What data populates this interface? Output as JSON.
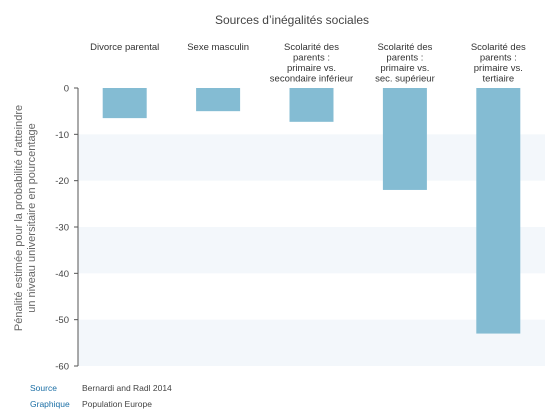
{
  "colors": {
    "bar": "#84bcd3",
    "band": "#f3f7fb",
    "axis": "#555555",
    "footer_key": "#1a6ea5"
  },
  "chart_data": {
    "type": "bar",
    "title": "Sources d’inégalités sociales",
    "ylabel": "Pénalité estimée pour la probabilité d’atteindre un niveau universitaire en pourcentage",
    "ylabel_lines": [
      "Pénalité estimée pour la probabilité d’atteindre",
      "un niveau universitaire en pourcentage"
    ],
    "categories": [
      "Divorce parental",
      "Sexe masculin",
      "Scolarité des parents : primaire vs. secondaire inférieur",
      "Scolarité des parents : primaire vs. sec. supérieur",
      "Scolarité des parents : primaire vs. tertiaire"
    ],
    "category_lines": [
      [
        "Divorce parental"
      ],
      [
        "Sexe masculin"
      ],
      [
        "Scolarité des",
        "parents :",
        "primaire vs.",
        "secondaire inférieur"
      ],
      [
        "Scolarité des",
        "parents :",
        "primaire vs.",
        "sec. supérieur"
      ],
      [
        "Scolarité des",
        "parents :",
        "primaire vs.",
        "tertiaire"
      ]
    ],
    "values": [
      -6.5,
      -5,
      -7.3,
      -22,
      -53
    ],
    "ylim": [
      -60,
      0
    ],
    "yticks": [
      0,
      -10,
      -20,
      -30,
      -40,
      -50,
      -60
    ],
    "legend": "none",
    "category_labels_position": "top"
  },
  "footer": {
    "source_key": "Source",
    "source_val": "Bernardi and Radl 2014",
    "graphique_key": "Graphique",
    "graphique_val": "Population Europe"
  }
}
